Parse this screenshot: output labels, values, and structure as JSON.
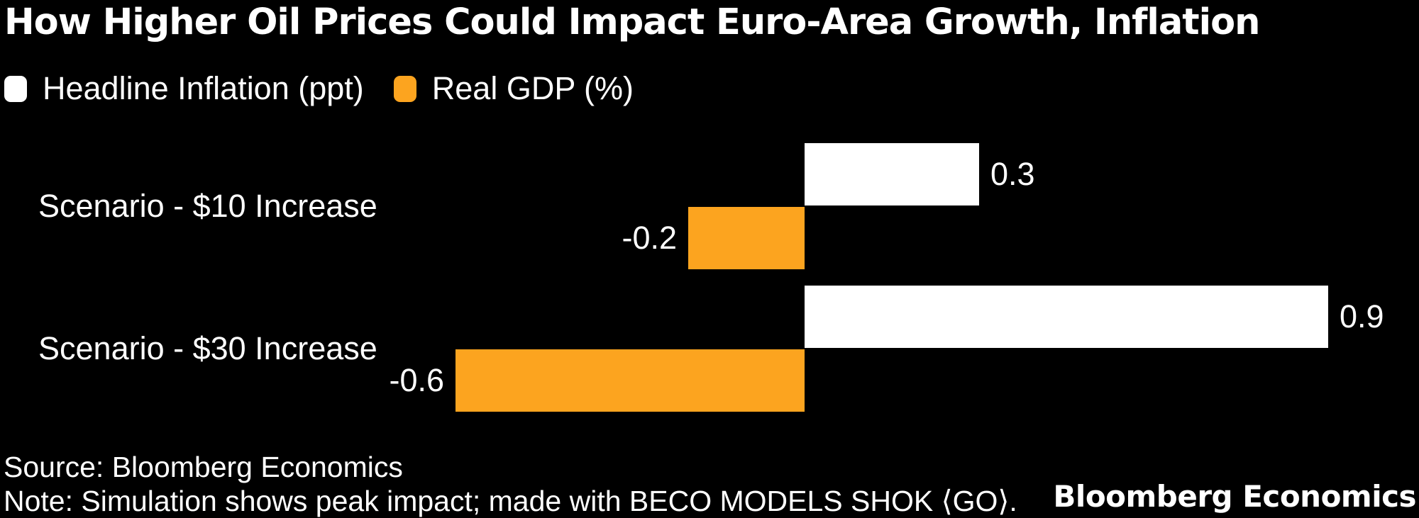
{
  "title": "How Higher Oil Prices Could Impact Euro-Area Growth, Inflation",
  "chart_data": {
    "type": "bar",
    "orientation": "horizontal",
    "title": "How Higher Oil Prices Could Impact Euro-Area Growth, Inflation",
    "categories": [
      "Scenario - $10 Increase",
      "Scenario - $30 Increase"
    ],
    "series": [
      {
        "name": "Headline Inflation (ppt)",
        "color": "#ffffff",
        "values": [
          0.3,
          0.9
        ]
      },
      {
        "name": "Real GDP (%)",
        "color": "#fca41f",
        "values": [
          -0.2,
          -0.6
        ]
      }
    ],
    "xlabel": "",
    "ylabel": "",
    "xlim": [
      -0.8,
      1.05
    ],
    "grid": false,
    "legend_position": "top",
    "value_labels": true
  },
  "footer": {
    "source": "Source: Bloomberg Economics",
    "note": "Note: Simulation shows peak impact; made with BECO MODELS SHOK ⟨GO⟩.",
    "brand": "Bloomberg Economics"
  },
  "colors": {
    "background": "#000000",
    "text": "#ffffff",
    "accent_orange": "#fca41f",
    "bar_white": "#ffffff"
  }
}
